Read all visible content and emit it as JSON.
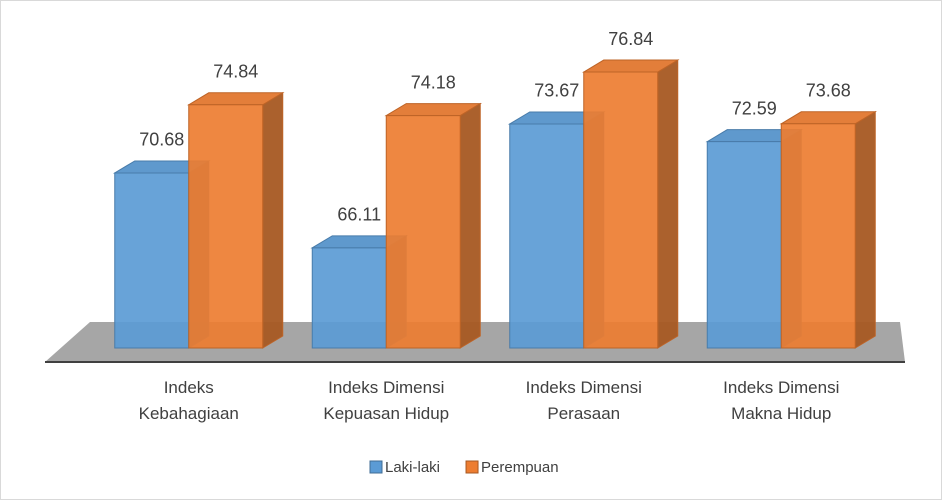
{
  "chart_data": {
    "type": "bar3d",
    "categories": [
      "Indeks\nKebahagiaan",
      "Indeks Dimensi\nKepuasan Hidup",
      "Indeks Dimensi\nPerasaan",
      "Indeks Dimensi\nMakna Hidup"
    ],
    "series": [
      {
        "name": "Laki-laki",
        "color": "#5b9bd5",
        "values": [
          70.68,
          66.11,
          73.67,
          72.59
        ]
      },
      {
        "name": "Perempuan",
        "color": "#ed7d31",
        "values": [
          74.84,
          74.18,
          76.84,
          73.68
        ]
      }
    ],
    "ylim": [
      60,
      78
    ],
    "legend": "bottom"
  }
}
